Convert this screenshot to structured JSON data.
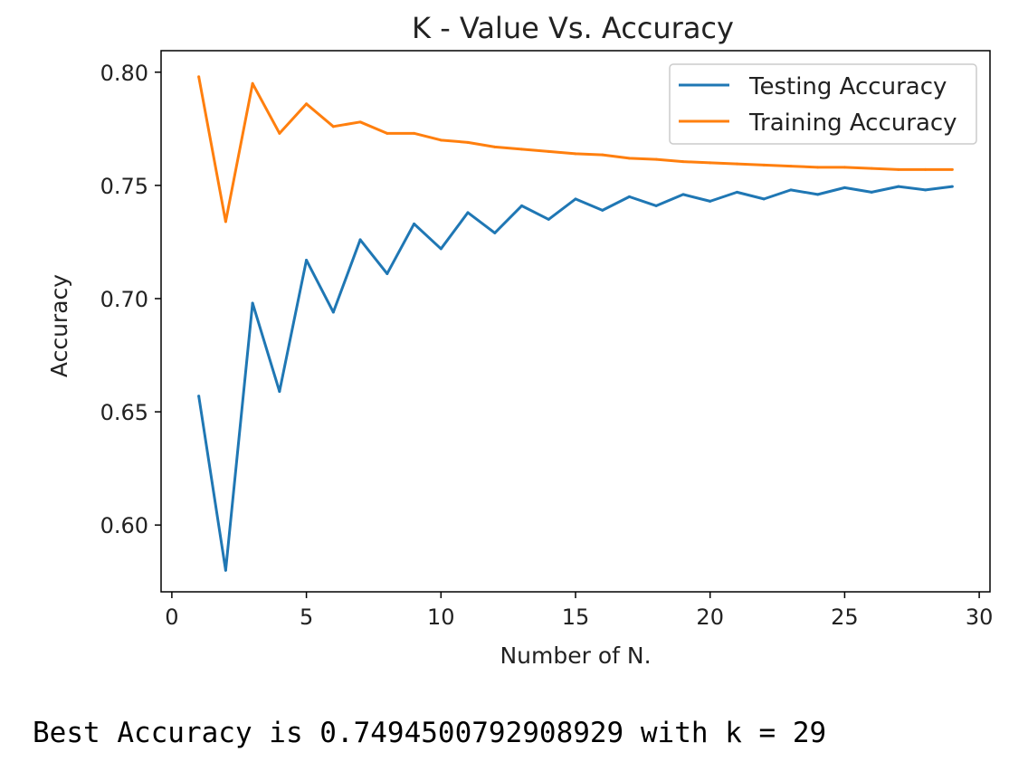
{
  "chart_data": {
    "type": "line",
    "title": "K - Value Vs. Accuracy",
    "xlabel": "Number of N.",
    "ylabel": "Accuracy",
    "xlim": [
      -0.4,
      30.4
    ],
    "ylim": [
      0.5705,
      0.8095
    ],
    "xticks": [
      0,
      5,
      10,
      15,
      20,
      25,
      30
    ],
    "xtick_labels": [
      "0",
      "5",
      "10",
      "15",
      "20",
      "25",
      "30"
    ],
    "yticks": [
      0.6,
      0.65,
      0.7,
      0.75,
      0.8
    ],
    "ytick_labels": [
      "0.60",
      "0.65",
      "0.70",
      "0.75",
      "0.80"
    ],
    "grid": false,
    "legend_position": "upper right",
    "x": [
      1,
      2,
      3,
      4,
      5,
      6,
      7,
      8,
      9,
      10,
      11,
      12,
      13,
      14,
      15,
      16,
      17,
      18,
      19,
      20,
      21,
      22,
      23,
      24,
      25,
      26,
      27,
      28,
      29
    ],
    "series": [
      {
        "name": "Testing Accuracy",
        "color": "#1f77b4",
        "values": [
          0.657,
          0.58,
          0.698,
          0.659,
          0.717,
          0.694,
          0.726,
          0.711,
          0.733,
          0.722,
          0.738,
          0.729,
          0.741,
          0.735,
          0.744,
          0.739,
          0.745,
          0.741,
          0.746,
          0.743,
          0.747,
          0.744,
          0.748,
          0.746,
          0.749,
          0.747,
          0.7495,
          0.748,
          0.7495
        ]
      },
      {
        "name": "Training Accuracy",
        "color": "#ff7f0e",
        "values": [
          0.798,
          0.734,
          0.795,
          0.773,
          0.786,
          0.776,
          0.778,
          0.773,
          0.773,
          0.77,
          0.769,
          0.767,
          0.766,
          0.765,
          0.764,
          0.7635,
          0.762,
          0.7615,
          0.7605,
          0.76,
          0.7595,
          0.759,
          0.7585,
          0.758,
          0.758,
          0.7575,
          0.757,
          0.757,
          0.757
        ]
      }
    ]
  },
  "output": {
    "result_text": "Best Accuracy is 0.7494500792908929 with k = 29"
  }
}
